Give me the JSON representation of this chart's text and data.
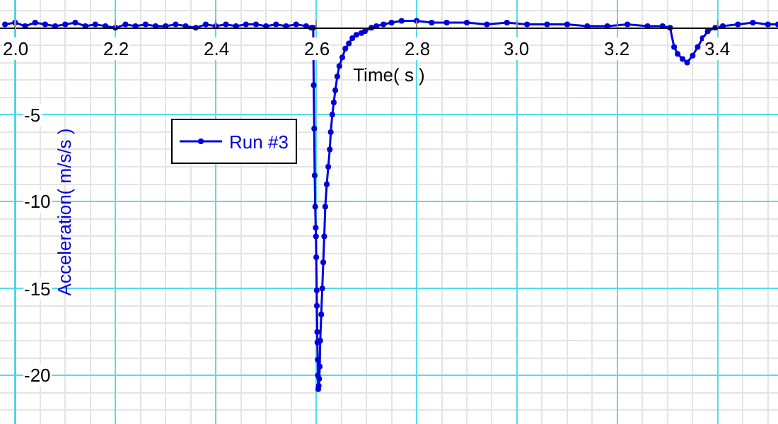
{
  "chart_data": {
    "type": "line",
    "xlabel": "Time( s )",
    "ylabel": "Acceleration( m/s/s )",
    "xlim": [
      1.97,
      3.52
    ],
    "ylim": [
      -22.8,
      1.6
    ],
    "xticks": [
      {
        "value": 2.0,
        "label": "2.0"
      },
      2.2,
      2.4,
      2.6,
      2.8,
      {
        "value": 3.0,
        "label": "3.0"
      },
      3.2,
      3.4
    ],
    "yticks": [
      -5,
      -10,
      -15,
      -20
    ],
    "grid": true,
    "legend": "top left",
    "marker": "circle",
    "line_style": "solid",
    "series": [
      {
        "name": "Run #3",
        "color": "#0000dd",
        "x": [
          1.98,
          2.0,
          2.02,
          2.04,
          2.06,
          2.08,
          2.1,
          2.12,
          2.14,
          2.16,
          2.18,
          2.2,
          2.22,
          2.24,
          2.26,
          2.28,
          2.3,
          2.32,
          2.34,
          2.36,
          2.38,
          2.4,
          2.42,
          2.44,
          2.46,
          2.48,
          2.5,
          2.52,
          2.54,
          2.56,
          2.58,
          2.59,
          2.594,
          2.595,
          2.596,
          2.597,
          2.598,
          2.599,
          2.5995,
          2.6,
          2.601,
          2.6013,
          2.602,
          2.6023,
          2.603,
          2.6033,
          2.604,
          2.605,
          2.606,
          2.607,
          2.608,
          2.61,
          2.612,
          2.614,
          2.616,
          2.618,
          2.621,
          2.624,
          2.627,
          2.629,
          2.632,
          2.635,
          2.638,
          2.642,
          2.646,
          2.652,
          2.658,
          2.665,
          2.672,
          2.68,
          2.69,
          2.697,
          2.71,
          2.72,
          2.734,
          2.75,
          2.77,
          2.8,
          2.83,
          2.86,
          2.9,
          2.94,
          2.98,
          3.02,
          3.06,
          3.1,
          3.14,
          3.18,
          3.22,
          3.26,
          3.29,
          3.305,
          3.313,
          3.32,
          3.33,
          3.339,
          3.35,
          3.36,
          3.37,
          3.38,
          3.395,
          3.41,
          3.44,
          3.47,
          3.5,
          3.52
        ],
        "values": [
          0.2,
          0.3,
          0.1,
          0.3,
          0.2,
          0.1,
          0.2,
          0.3,
          0.1,
          0.2,
          0.1,
          0.0,
          0.2,
          0.1,
          0.2,
          0.1,
          0.1,
          0.2,
          0.1,
          0.0,
          0.2,
          0.1,
          0.2,
          0.1,
          0.2,
          0.2,
          0.1,
          0.2,
          0.1,
          0.2,
          0.1,
          0.0,
          0.0,
          -3.3,
          -5.8,
          -8.5,
          -10.3,
          -11.5,
          -12.0,
          -13.2,
          -15.1,
          -16.0,
          -17.5,
          -18.1,
          -19.1,
          -20.0,
          -20.8,
          -20.6,
          -20.2,
          -19.5,
          -18.0,
          -16.5,
          -15.0,
          -13.5,
          -12.0,
          -10.3,
          -9.0,
          -8.0,
          -7.0,
          -6.0,
          -5.0,
          -4.3,
          -3.6,
          -2.8,
          -2.2,
          -1.7,
          -1.2,
          -0.9,
          -0.6,
          -0.4,
          -0.3,
          -0.2,
          0.0,
          0.1,
          0.2,
          0.3,
          0.4,
          0.4,
          0.3,
          0.3,
          0.3,
          0.2,
          0.3,
          0.2,
          0.2,
          0.2,
          0.1,
          0.1,
          0.2,
          0.1,
          0.1,
          0.0,
          -1.1,
          -1.5,
          -1.8,
          -2.0,
          -1.6,
          -1.1,
          -0.6,
          -0.2,
          0.0,
          0.1,
          0.2,
          0.3,
          0.2,
          0.2
        ]
      }
    ]
  }
}
